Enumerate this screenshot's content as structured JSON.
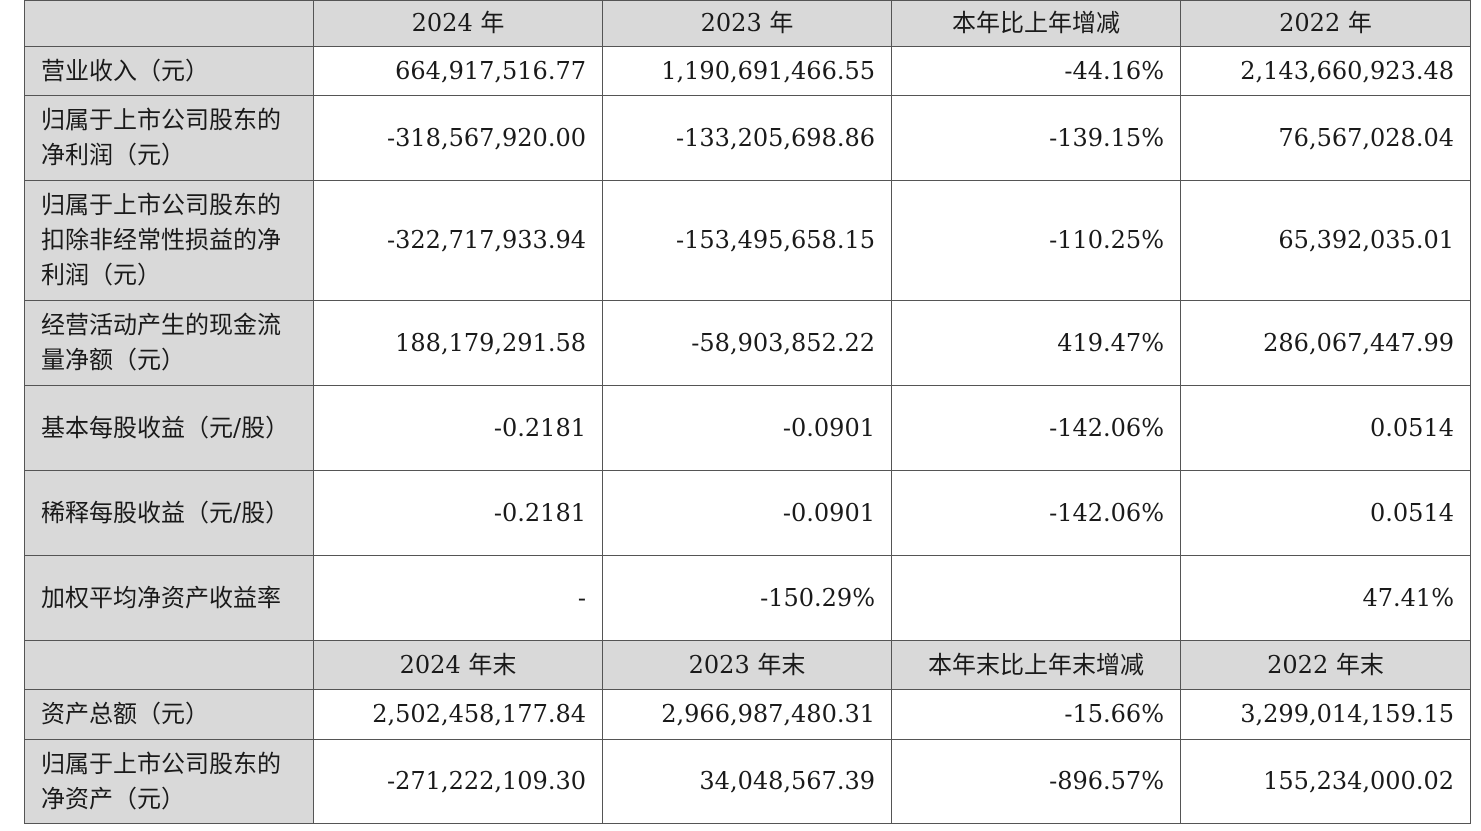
{
  "header1": [
    "2024 年",
    "2023 年",
    "本年比上年增减",
    "2022 年"
  ],
  "rows1": [
    {
      "label": "营业收入（元）",
      "values": [
        "664,917,516.77",
        "1,190,691,466.55",
        "-44.16%",
        "2,143,660,923.48"
      ]
    },
    {
      "label": "归属于上市公司股东的净利润（元）",
      "values": [
        "-318,567,920.00",
        "-133,205,698.86",
        "-139.15%",
        "76,567,028.04"
      ]
    },
    {
      "label": "归属于上市公司股东的扣除非经常性损益的净利润（元）",
      "values": [
        "-322,717,933.94",
        "-153,495,658.15",
        "-110.25%",
        "65,392,035.01"
      ]
    },
    {
      "label": "经营活动产生的现金流量净额（元）",
      "values": [
        "188,179,291.58",
        "-58,903,852.22",
        "419.47%",
        "286,067,447.99"
      ]
    },
    {
      "label": "基本每股收益（元/股）",
      "values": [
        "-0.2181",
        "-0.0901",
        "-142.06%",
        "0.0514"
      ]
    },
    {
      "label": "稀释每股收益（元/股）",
      "values": [
        "-0.2181",
        "-0.0901",
        "-142.06%",
        "0.0514"
      ]
    },
    {
      "label": "加权平均净资产收益率",
      "values": [
        "-",
        "-150.29%",
        "",
        "47.41%"
      ]
    }
  ],
  "header2": [
    "2024 年末",
    "2023 年末",
    "本年末比上年末增减",
    "2022 年末"
  ],
  "rows2": [
    {
      "label": "资产总额（元）",
      "values": [
        "2,502,458,177.84",
        "2,966,987,480.31",
        "-15.66%",
        "3,299,014,159.15"
      ]
    },
    {
      "label": "归属于上市公司股东的净资产（元）",
      "values": [
        "-271,222,109.30",
        "34,048,567.39",
        "-896.57%",
        "155,234,000.02"
      ]
    }
  ]
}
